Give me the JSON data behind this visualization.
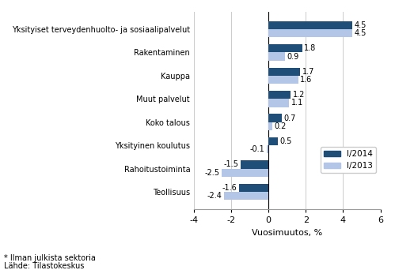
{
  "categories": [
    "Teollisuus",
    "Rahoitustoiminta",
    "Yksityinen koulutus",
    "Koko talous",
    "Muut palvelut",
    "Kauppa",
    "Rakentaminen",
    "Yksityiset terveydenhuolto- ja sosiaalipalvelut"
  ],
  "values_2014": [
    -1.6,
    -1.5,
    0.5,
    0.7,
    1.2,
    1.7,
    1.8,
    4.5
  ],
  "values_2013": [
    -2.4,
    -2.5,
    -0.1,
    0.2,
    1.1,
    1.6,
    0.9,
    4.5
  ],
  "color_2014": "#1f4e79",
  "color_2013": "#b4c6e7",
  "xlabel": "Vuosimuutos, %",
  "legend_2014": "I/2014",
  "legend_2013": "I/2013",
  "xlim": [
    -4,
    6
  ],
  "xticks": [
    -4,
    -2,
    0,
    2,
    4,
    6
  ],
  "footnote1": "* Ilman julkista sektoria",
  "footnote2": "Lähde: Tilastokeskus",
  "bar_height": 0.35
}
